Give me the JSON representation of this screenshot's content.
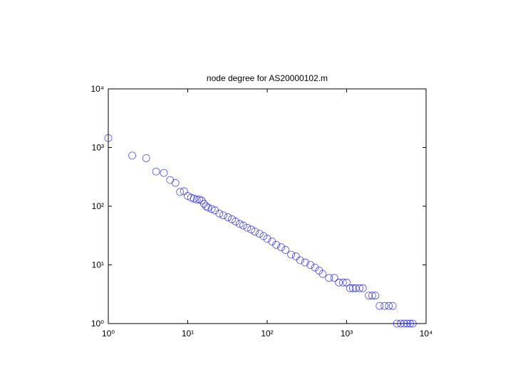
{
  "chart_data": {
    "type": "scatter",
    "title": "node degree for AS20000102.m",
    "xscale": "log",
    "yscale": "log",
    "color": "#0000ff",
    "marker": "open-circle",
    "xlim": [
      1,
      10000
    ],
    "ylim": [
      1,
      10000
    ],
    "xticks": [
      {
        "value": 1,
        "label": "10⁰"
      },
      {
        "value": 10,
        "label": "10¹"
      },
      {
        "value": 100,
        "label": "10²"
      },
      {
        "value": 1000,
        "label": "10³"
      },
      {
        "value": 10000,
        "label": "10⁴"
      }
    ],
    "yticks": [
      {
        "value": 1,
        "label": "10⁰"
      },
      {
        "value": 10,
        "label": "10¹"
      },
      {
        "value": 100,
        "label": "10²"
      },
      {
        "value": 1000,
        "label": "10³"
      },
      {
        "value": 10000,
        "label": "10⁴"
      }
    ],
    "x": [
      1,
      2,
      3,
      4,
      5,
      6,
      7,
      8,
      9,
      10,
      11,
      12,
      13,
      14,
      15,
      16,
      17,
      18,
      20,
      22,
      25,
      28,
      32,
      36,
      40,
      45,
      50,
      56,
      63,
      70,
      80,
      90,
      100,
      115,
      130,
      150,
      170,
      200,
      230,
      260,
      300,
      350,
      400,
      450,
      500,
      600,
      700,
      800,
      900,
      1000,
      1100,
      1200,
      1300,
      1450,
      1600,
      1900,
      2100,
      2300,
      2600,
      3000,
      3400,
      3800,
      4300,
      4800,
      5300,
      5800,
      6300,
      6800
    ],
    "values": [
      1450,
      730,
      660,
      390,
      370,
      280,
      250,
      175,
      180,
      150,
      140,
      135,
      130,
      130,
      125,
      110,
      100,
      95,
      90,
      85,
      75,
      70,
      65,
      60,
      55,
      50,
      47,
      43,
      40,
      37,
      34,
      31,
      28,
      25,
      22,
      20,
      18,
      15,
      14,
      12,
      11,
      10,
      9,
      8,
      7,
      6,
      6,
      5,
      5,
      5,
      4,
      4,
      4,
      4,
      4,
      3,
      3,
      3,
      2,
      2,
      2,
      2,
      1,
      1,
      1,
      1,
      1,
      1
    ]
  }
}
